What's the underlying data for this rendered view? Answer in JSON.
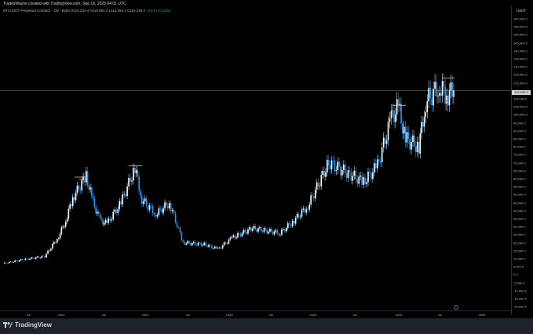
{
  "header": {
    "credit": "TradesWayne created with TradingView.com, Sep 16, 2025 04:01 UTC",
    "symbol": "BTCUSDT Perpetual Contract · 1W · Bybit",
    "ohlc": "O115,234.4 H116,961.2 L114,356.2 C115,229.2",
    "change": "+24.8 (+0.11%)"
  },
  "price_axis": {
    "unit": "USDT",
    "current_price": "115,229.2",
    "labels": [
      "160,000.0",
      "155,000.0",
      "150,000.0",
      "145,000.0",
      "140,000.0",
      "135,000.0",
      "130,000.0",
      "125,000.0",
      "120,000.0",
      "115,000.0",
      "110,000.0",
      "105,000.0",
      "100,000.0",
      "95,000.0",
      "90,000.0",
      "85,000.0",
      "80,000.0",
      "75,000.0",
      "70,000.0",
      "65,000.0",
      "60,000.0",
      "55,000.0",
      "50,000.0",
      "45,000.0",
      "40,000.0",
      "35,000.0",
      "30,000.0",
      "25,000.0",
      "20,000.0",
      "15,000.0",
      "10,000.0",
      "5,000.0",
      "0.0",
      "-5,000.0",
      "-10,000.0",
      "-15,000.0",
      "-20,000.0"
    ]
  },
  "time_axis": {
    "labels": [
      "Jul",
      "2021",
      "Jul",
      "2022",
      "Jul",
      "2023",
      "Jul",
      "2024",
      "Jul",
      "2025",
      "Jul",
      "2026"
    ]
  },
  "colors": {
    "up": "#ffffff",
    "down": "#2196f3",
    "background": "#000000",
    "marker": "#ff5252"
  },
  "footer": {
    "brand": "TradingView"
  },
  "chart_data": {
    "type": "candlestick",
    "timeframe": "1W",
    "x_range": [
      "2020-04",
      "2026-03"
    ],
    "ylim": [
      -20000,
      160000
    ],
    "approx_weekly_close": [
      {
        "date": "2020-04",
        "close": 7000
      },
      {
        "date": "2020-07",
        "close": 9500
      },
      {
        "date": "2020-10",
        "close": 11500
      },
      {
        "date": "2020-12",
        "close": 24000
      },
      {
        "date": "2021-01",
        "close": 34000
      },
      {
        "date": "2021-02",
        "close": 48000
      },
      {
        "date": "2021-04",
        "close": 62000
      },
      {
        "date": "2021-05",
        "close": 45000
      },
      {
        "date": "2021-06",
        "close": 34000
      },
      {
        "date": "2021-07",
        "close": 32000
      },
      {
        "date": "2021-09",
        "close": 45000
      },
      {
        "date": "2021-11",
        "close": 67000
      },
      {
        "date": "2021-12",
        "close": 47000
      },
      {
        "date": "2022-02",
        "close": 38000
      },
      {
        "date": "2022-04",
        "close": 45000
      },
      {
        "date": "2022-06",
        "close": 20000
      },
      {
        "date": "2022-09",
        "close": 19000
      },
      {
        "date": "2022-11",
        "close": 16000
      },
      {
        "date": "2023-01",
        "close": 23000
      },
      {
        "date": "2023-04",
        "close": 29000
      },
      {
        "date": "2023-08",
        "close": 26000
      },
      {
        "date": "2023-10",
        "close": 34000
      },
      {
        "date": "2023-12",
        "close": 43000
      },
      {
        "date": "2024-03",
        "close": 70000
      },
      {
        "date": "2024-06",
        "close": 63000
      },
      {
        "date": "2024-08",
        "close": 58000
      },
      {
        "date": "2024-10",
        "close": 68000
      },
      {
        "date": "2024-12",
        "close": 98000
      },
      {
        "date": "2025-01",
        "close": 105000
      },
      {
        "date": "2025-02",
        "close": 85000
      },
      {
        "date": "2025-04",
        "close": 80000
      },
      {
        "date": "2025-05",
        "close": 108000
      },
      {
        "date": "2025-07",
        "close": 118000
      },
      {
        "date": "2025-08",
        "close": 112000
      },
      {
        "date": "2025-09",
        "close": 115229
      }
    ]
  }
}
